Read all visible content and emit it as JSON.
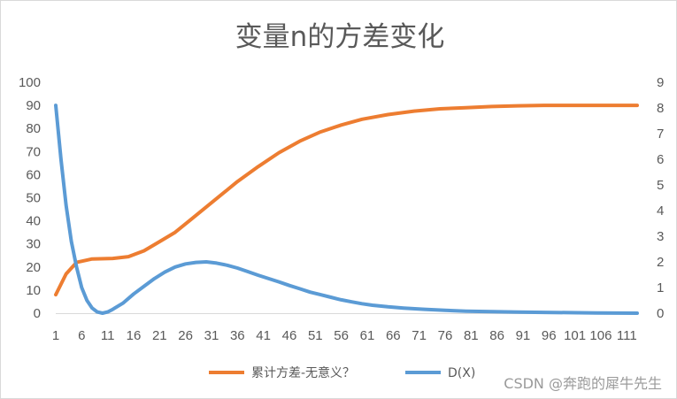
{
  "chart_data": {
    "type": "line",
    "title": "变量n的方差变化",
    "x": {
      "min": 1,
      "max": 113,
      "tick_labels": [
        "1",
        "6",
        "11",
        "16",
        "21",
        "26",
        "31",
        "36",
        "41",
        "46",
        "51",
        "56",
        "61",
        "66",
        "71",
        "76",
        "81",
        "86",
        "91",
        "96",
        "101",
        "106",
        "111"
      ]
    },
    "y_left": {
      "min": 0,
      "max": 100,
      "step": 10,
      "tick_labels": [
        "0",
        "10",
        "20",
        "30",
        "40",
        "50",
        "60",
        "70",
        "80",
        "90",
        "100"
      ]
    },
    "y_right": {
      "min": 0,
      "max": 9,
      "step": 1,
      "tick_labels": [
        "0",
        "1",
        "2",
        "3",
        "4",
        "5",
        "6",
        "7",
        "8",
        "9"
      ]
    },
    "series": [
      {
        "name": "累计方差-无意义？",
        "axis": "left",
        "color": "#ED7D31",
        "points": [
          [
            1,
            8
          ],
          [
            3,
            17
          ],
          [
            5,
            22
          ],
          [
            8,
            23.5
          ],
          [
            12,
            23.7
          ],
          [
            15,
            24.5
          ],
          [
            18,
            27
          ],
          [
            21,
            31
          ],
          [
            24,
            35
          ],
          [
            27,
            40.5
          ],
          [
            30,
            46
          ],
          [
            33,
            51.5
          ],
          [
            36,
            57
          ],
          [
            40,
            63.5
          ],
          [
            44,
            69.5
          ],
          [
            48,
            74.5
          ],
          [
            52,
            78.5
          ],
          [
            56,
            81.5
          ],
          [
            60,
            84
          ],
          [
            65,
            86
          ],
          [
            70,
            87.5
          ],
          [
            75,
            88.5
          ],
          [
            80,
            89
          ],
          [
            85,
            89.5
          ],
          [
            90,
            89.8
          ],
          [
            95,
            90
          ],
          [
            100,
            90
          ],
          [
            105,
            90
          ],
          [
            113,
            90
          ]
        ]
      },
      {
        "name": "D(X)",
        "axis": "right",
        "color": "#5B9BD5",
        "points": [
          [
            1,
            8.1
          ],
          [
            2,
            6
          ],
          [
            3,
            4.2
          ],
          [
            4,
            2.8
          ],
          [
            5,
            1.8
          ],
          [
            6,
            1
          ],
          [
            7,
            0.5
          ],
          [
            8,
            0.2
          ],
          [
            9,
            0.05
          ],
          [
            10,
            0
          ],
          [
            11,
            0.05
          ],
          [
            12,
            0.15
          ],
          [
            14,
            0.4
          ],
          [
            16,
            0.75
          ],
          [
            18,
            1.05
          ],
          [
            20,
            1.35
          ],
          [
            22,
            1.6
          ],
          [
            24,
            1.8
          ],
          [
            26,
            1.92
          ],
          [
            28,
            1.98
          ],
          [
            30,
            2
          ],
          [
            32,
            1.95
          ],
          [
            34,
            1.87
          ],
          [
            36,
            1.76
          ],
          [
            38,
            1.62
          ],
          [
            40,
            1.48
          ],
          [
            42,
            1.35
          ],
          [
            44,
            1.22
          ],
          [
            46,
            1.08
          ],
          [
            48,
            0.95
          ],
          [
            50,
            0.82
          ],
          [
            52,
            0.72
          ],
          [
            54,
            0.62
          ],
          [
            56,
            0.52
          ],
          [
            58,
            0.44
          ],
          [
            60,
            0.37
          ],
          [
            62,
            0.31
          ],
          [
            65,
            0.25
          ],
          [
            68,
            0.2
          ],
          [
            72,
            0.15
          ],
          [
            76,
            0.11
          ],
          [
            80,
            0.08
          ],
          [
            85,
            0.06
          ],
          [
            90,
            0.04
          ],
          [
            95,
            0.03
          ],
          [
            100,
            0.02
          ],
          [
            105,
            0.01
          ],
          [
            113,
            0
          ]
        ]
      }
    ],
    "legend_position": "bottom",
    "grid": false
  },
  "watermark": "CSDN @奔跑的犀牛先生"
}
